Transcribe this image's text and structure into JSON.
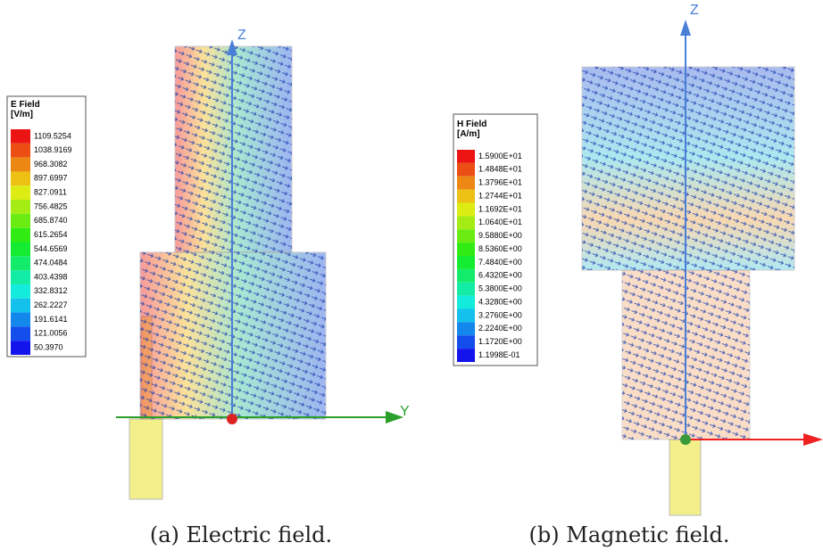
{
  "panels": [
    {
      "legend": {
        "title": "E Field",
        "unit": "[V/m]",
        "values": [
          "1109.5254",
          "1038.9169",
          "968.3082",
          "897.6997",
          "827.0911",
          "756.4825",
          "685.8740",
          "615.2654",
          "544.6569",
          "474.0484",
          "403.4398",
          "332.8312",
          "262.2227",
          "191.6141",
          "121.0056",
          "50.3970"
        ]
      },
      "axes": [
        "Z",
        "Y"
      ],
      "caption": "(a) Electric field."
    },
    {
      "legend": {
        "title": "H Field",
        "unit": "[A/m]",
        "values": [
          "1.5900E+01",
          "1.4848E+01",
          "1.3796E+01",
          "1.2744E+01",
          "1.1692E+01",
          "1.0640E+01",
          "9.5880E+00",
          "8.5360E+00",
          "7.4840E+00",
          "6.4320E+00",
          "5.3800E+00",
          "4.3280E+00",
          "3.2760E+00",
          "2.2240E+00",
          "1.1720E+00",
          "1.1998E-01"
        ]
      },
      "axes": [
        "Z"
      ],
      "caption": "(b) Magnetic field."
    }
  ]
}
